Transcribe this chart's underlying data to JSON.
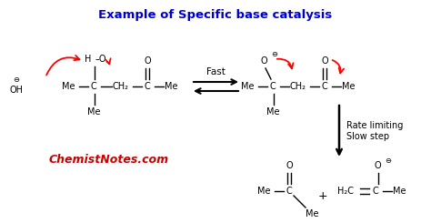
{
  "title": "Example of Specific base catalysis",
  "title_color": "#0000CC",
  "title_fontsize": 9.5,
  "watermark": "ChemistNotes.com",
  "watermark_color": "#CC0000",
  "watermark_fontsize": 9,
  "bg_color": "#ffffff",
  "fast_label": "Fast",
  "rate_label": "Rate limiting\nSlow step"
}
